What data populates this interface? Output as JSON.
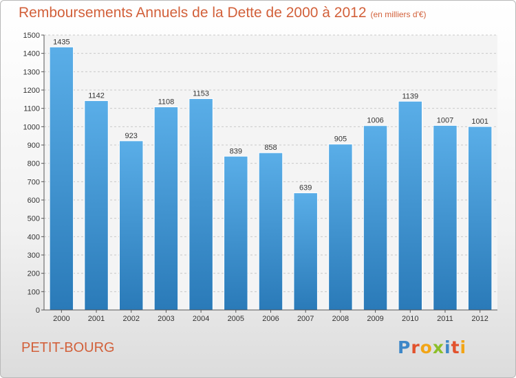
{
  "title": "Remboursements Annuels de la Dette de 2000 à 2012",
  "unit": "(en milliers d'€)",
  "place": "PETIT-BOURG",
  "logo": "Proxiti",
  "colors": {
    "bar_top": "#5aaee8",
    "bar_bottom": "#2a7ab8",
    "title": "#d2603a"
  },
  "chart_data": {
    "type": "bar",
    "title": "Remboursements Annuels de la Dette de 2000 à 2012",
    "xlabel": "",
    "ylabel": "",
    "categories": [
      "2000",
      "2001",
      "2002",
      "2003",
      "2004",
      "2005",
      "2006",
      "2007",
      "2008",
      "2009",
      "2010",
      "2011",
      "2012"
    ],
    "values": [
      1435,
      1142,
      923,
      1108,
      1153,
      839,
      858,
      639,
      905,
      1006,
      1139,
      1007,
      1001
    ],
    "ylim": [
      0,
      1500
    ],
    "yticks": [
      0,
      100,
      200,
      300,
      400,
      500,
      600,
      700,
      800,
      900,
      1000,
      1100,
      1200,
      1300,
      1400,
      1500
    ],
    "grid": true,
    "legend": "none"
  }
}
